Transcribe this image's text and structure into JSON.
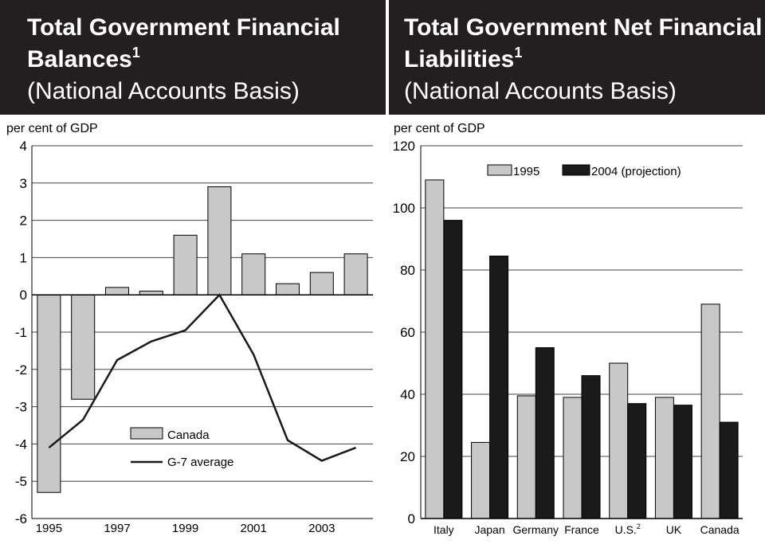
{
  "colors": {
    "header_bg": "#231f20",
    "bar_light": "#c8c8c8",
    "bar_dark": "#1a1a1a",
    "line": "#1a1a1a",
    "grid": "#444444"
  },
  "panels": {
    "left": {
      "title_line1": "Total Government Financial",
      "title_line2": "Balances",
      "title_sup": "1",
      "subtitle": "(National Accounts Basis)"
    },
    "right": {
      "title_line1": "Total Government Net Financial",
      "title_line2": "Liabilities",
      "title_sup": "1",
      "subtitle": "(National Accounts Basis)"
    }
  },
  "chart_data": [
    {
      "type": "bar",
      "ylabel": "per cent of GDP",
      "ylim": [
        -6,
        4
      ],
      "yticks": [
        4,
        3,
        2,
        1,
        0,
        -1,
        -2,
        -3,
        -4,
        -5,
        -6
      ],
      "x": [
        1995,
        1996,
        1997,
        1998,
        1999,
        2000,
        2001,
        2002,
        2003,
        2004
      ],
      "xtick_labels": [
        "1995",
        "1997",
        "1999",
        "2001",
        "2003"
      ],
      "grid": true,
      "legend_position": "bottom-center",
      "series": [
        {
          "name": "Canada",
          "kind": "bar",
          "values": [
            -5.3,
            -2.8,
            0.2,
            0.1,
            1.6,
            2.9,
            1.1,
            0.3,
            0.6,
            1.1
          ]
        },
        {
          "name": "G-7 average",
          "kind": "line",
          "values": [
            -4.1,
            -3.35,
            -1.75,
            -1.25,
            -0.95,
            0.0,
            -1.6,
            -3.9,
            -4.45,
            -4.1
          ]
        }
      ]
    },
    {
      "type": "bar",
      "ylabel": "per cent of GDP",
      "ylim": [
        0,
        120
      ],
      "yticks": [
        120,
        100,
        80,
        60,
        40,
        20,
        0
      ],
      "categories": [
        "Italy",
        "Japan",
        "Germany",
        "France",
        "U.S.",
        "UK",
        "Canada"
      ],
      "category_sups": [
        "",
        "",
        "",
        "",
        "2",
        "",
        ""
      ],
      "grid": true,
      "legend_position": "top",
      "series": [
        {
          "name": "1995",
          "values": [
            109,
            24.5,
            39.5,
            39,
            50,
            39,
            69
          ]
        },
        {
          "name": "2004 (projection)",
          "values": [
            96,
            84.5,
            55,
            46,
            37,
            36.5,
            31
          ]
        }
      ]
    }
  ]
}
